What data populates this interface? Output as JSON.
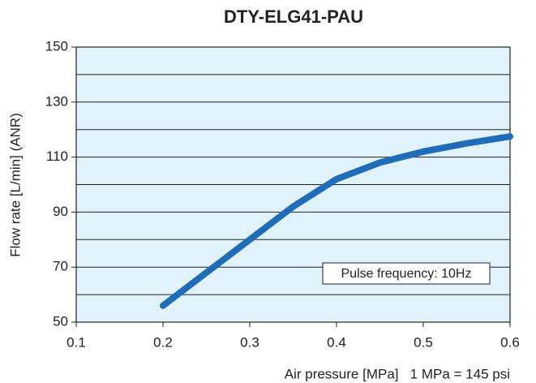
{
  "chart_data": {
    "type": "line",
    "title": "DTY-ELG41-PAU",
    "x_label": "Air pressure [MPa]   1 MPa = 145 psi",
    "y_label": "Flow rate [L/min] (ANR)",
    "annotation": "Pulse frequency: 10Hz",
    "x": [
      0.2,
      0.25,
      0.3,
      0.35,
      0.4,
      0.45,
      0.5,
      0.55,
      0.6
    ],
    "values": [
      56,
      68,
      80,
      92,
      102,
      108,
      112,
      115,
      117.5
    ],
    "color": "#1f6cb8",
    "xlim": [
      0.1,
      0.6
    ],
    "xticks": [
      0.1,
      0.2,
      0.3,
      0.4,
      0.5,
      0.6
    ],
    "ylim": [
      50,
      150
    ],
    "yticks": [
      50,
      70,
      90,
      110,
      130,
      150
    ],
    "y_minor_grid": [
      60,
      80,
      100,
      120,
      140
    ],
    "grid": true,
    "plot_background": "#e0f3fb"
  }
}
